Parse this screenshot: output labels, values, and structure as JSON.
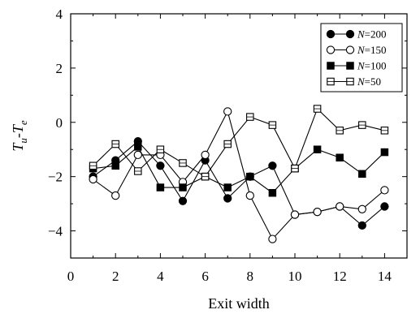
{
  "chart_data": {
    "type": "line",
    "title": "",
    "xlabel": "Exit width",
    "ylabel": "T",
    "ylabel_sub_u": "u",
    "ylabel_minus": "-T",
    "ylabel_sub_e": "e",
    "xlim": [
      0,
      15
    ],
    "ylim": [
      -5,
      4
    ],
    "xticks": [
      0,
      2,
      4,
      6,
      8,
      10,
      12,
      14
    ],
    "yticks": [
      -4,
      -2,
      0,
      2,
      4
    ],
    "grid": false,
    "legend_position": "top-right",
    "legend_var": "N",
    "x": [
      1,
      2,
      3,
      4,
      5,
      6,
      7,
      8,
      9,
      10,
      11,
      12,
      13,
      14
    ],
    "series": [
      {
        "name": "200",
        "marker": "filled-circle",
        "values": [
          -2.0,
          -1.4,
          -0.7,
          -1.6,
          -2.9,
          -1.4,
          -2.8,
          -2.0,
          -1.6,
          -3.4,
          -3.3,
          -3.1,
          -3.8,
          -3.1
        ]
      },
      {
        "name": "150",
        "marker": "open-circle",
        "values": [
          -2.1,
          -2.7,
          -1.2,
          -1.2,
          -2.2,
          -1.2,
          0.4,
          -2.7,
          -4.3,
          -3.4,
          -3.3,
          -3.1,
          -3.2,
          -2.5
        ]
      },
      {
        "name": "100",
        "marker": "filled-square",
        "values": [
          -1.7,
          -1.6,
          -0.9,
          -2.4,
          -2.4,
          -2.0,
          -2.4,
          -2.0,
          -2.6,
          -1.7,
          -1.0,
          -1.3,
          -1.9,
          -1.1
        ]
      },
      {
        "name": "50",
        "marker": "open-square",
        "values": [
          -1.6,
          -0.8,
          -1.8,
          -1.0,
          -1.5,
          -2.0,
          -0.8,
          0.2,
          -0.1,
          -1.7,
          0.5,
          -0.3,
          -0.1,
          -0.3
        ]
      }
    ]
  }
}
